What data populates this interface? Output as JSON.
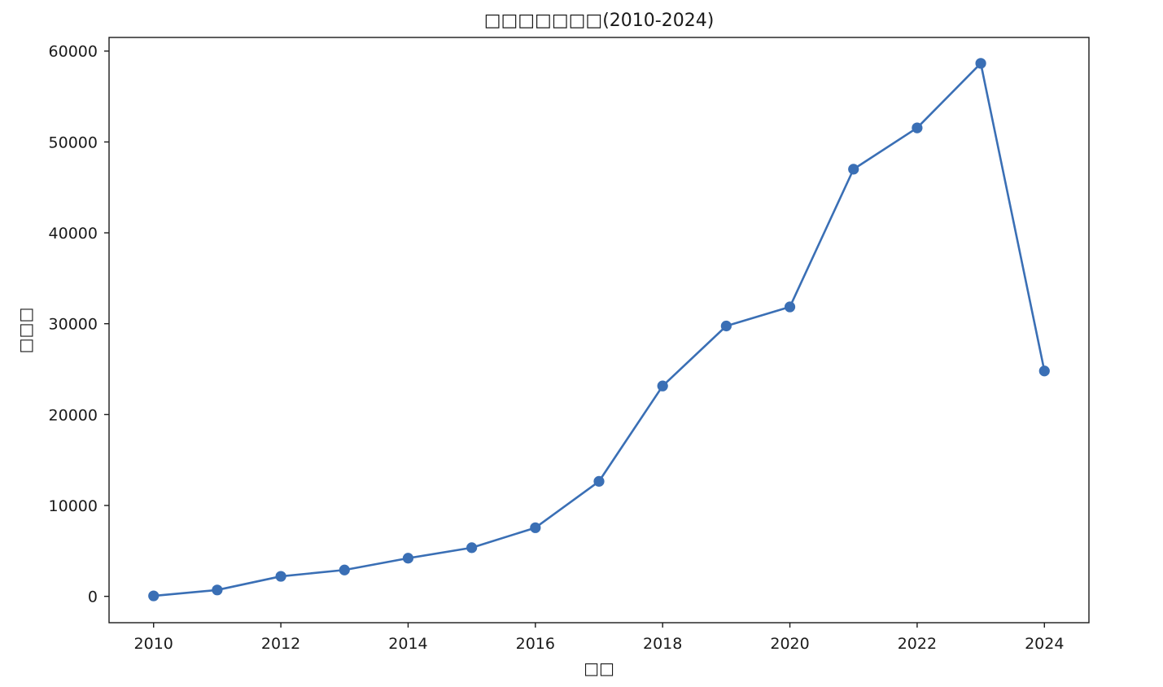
{
  "chart_data": {
    "type": "line",
    "title": "□□□□□□□(2010-2024)",
    "xlabel": "□□",
    "ylabel": "□□□",
    "x": [
      2010,
      2011,
      2012,
      2013,
      2014,
      2015,
      2016,
      2017,
      2018,
      2019,
      2020,
      2021,
      2022,
      2023,
      2024
    ],
    "series": [
      {
        "values": [
          50,
          700,
          2200,
          2900,
          4200,
          5350,
          7550,
          12650,
          23150,
          29750,
          31850,
          47000,
          51550,
          58650,
          24800
        ],
        "color": "#3a6fb5",
        "marker": "circle"
      }
    ],
    "xlim": [
      2009.3,
      2024.7
    ],
    "ylim": [
      -2900,
      61500
    ],
    "xticks": [
      2010,
      2012,
      2014,
      2016,
      2018,
      2020,
      2022,
      2024
    ],
    "yticks": [
      0,
      10000,
      20000,
      30000,
      40000,
      50000,
      60000
    ],
    "xtick_labels": [
      "2010",
      "2012",
      "2014",
      "2016",
      "2018",
      "2020",
      "2022",
      "2024"
    ],
    "ytick_labels": [
      "0",
      "10000",
      "20000",
      "30000",
      "40000",
      "50000",
      "60000"
    ],
    "grid": false,
    "legend": "none"
  }
}
